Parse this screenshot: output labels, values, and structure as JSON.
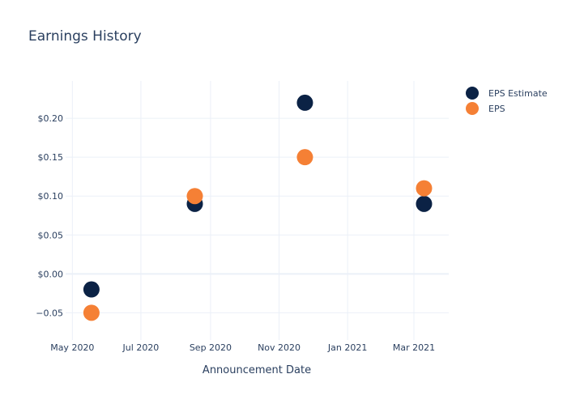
{
  "colors": {
    "background": "#ffffff",
    "grid": "#ebf0f8",
    "zeroline": "#ebf0f8",
    "text": "#2a3f5f",
    "eps_estimate": "#0b2245",
    "eps": "#f58035"
  },
  "chart_data": {
    "type": "scatter",
    "title": "Earnings History",
    "xlabel": "Announcement Date",
    "ylabel": "",
    "x_ticks": [
      "May 2020",
      "Jul 2020",
      "Sep 2020",
      "Nov 2020",
      "Jan 2021",
      "Mar 2021"
    ],
    "x_tick_dates": [
      "2020-05-01",
      "2020-07-01",
      "2020-09-01",
      "2020-11-01",
      "2021-01-01",
      "2021-03-01"
    ],
    "x_range": [
      "2020-04-25",
      "2021-04-01"
    ],
    "y_ticks": [
      -0.05,
      0,
      0.05,
      0.1,
      0.15,
      0.2
    ],
    "y_tick_labels": [
      "−0.05",
      "$0.00",
      "$0.05",
      "$0.10",
      "$0.15",
      "$0.20"
    ],
    "ylim": [
      -0.085,
      0.248
    ],
    "grid": true,
    "legend_position": "top-right",
    "x": [
      "2020-05-18",
      "2020-08-18",
      "2020-11-24",
      "2021-03-10"
    ],
    "series": [
      {
        "name": "EPS Estimate",
        "color": "#0b2245",
        "values": [
          -0.02,
          0.09,
          0.22,
          0.09
        ]
      },
      {
        "name": "EPS",
        "color": "#f58035",
        "values": [
          -0.05,
          0.1,
          0.15,
          0.11
        ]
      }
    ]
  }
}
